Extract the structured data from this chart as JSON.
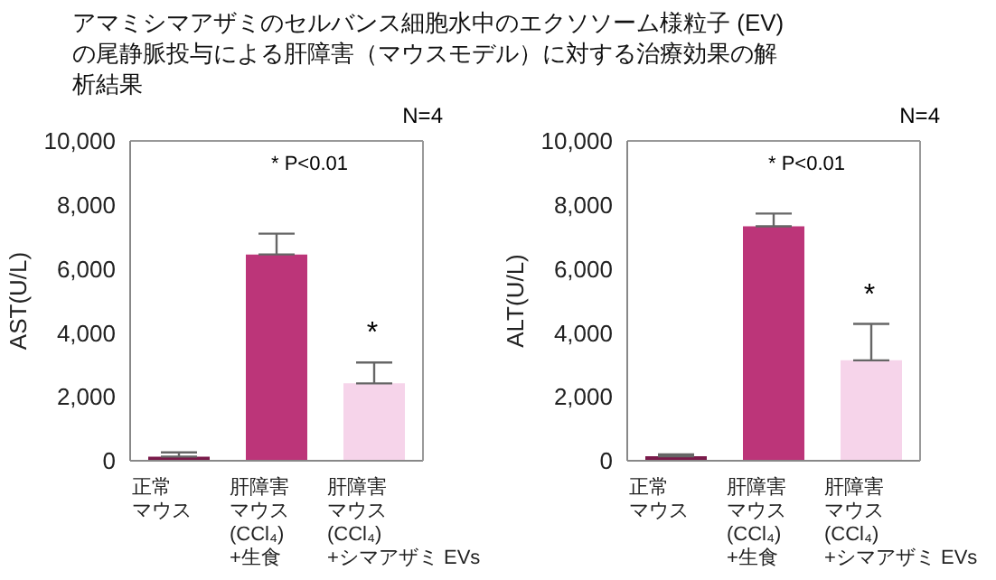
{
  "chart_data": [
    {
      "type": "bar",
      "title": "アマミシマアザミのセルバンス細胞水中のエクソソーム様粒子 (EV)の尾静脈投与による肝障害（マウスモデル）に対する治療効果の解析結果",
      "ylabel": "AST(U/L)",
      "categories": [
        "正常マウス",
        "肝障害マウス(CCl₄)+生食",
        "肝障害マウス(CCl₄)+シマアザミ EVs"
      ],
      "values": [
        130,
        6450,
        2420
      ],
      "errors": [
        [
          130,
          260
        ],
        [
          6450,
          7100
        ],
        [
          2420,
          3070
        ]
      ],
      "colors": [
        "#7a1a4a",
        "#bc3579",
        "#f6d4ea"
      ],
      "ylim": [
        0,
        10000
      ],
      "yticks": [
        {
          "value": 0,
          "label": "0"
        },
        {
          "value": 2000,
          "label": "2,000"
        },
        {
          "value": 4000,
          "label": "4,000"
        },
        {
          "value": 6000,
          "label": "6,000"
        },
        {
          "value": 8000,
          "label": "8,000"
        },
        {
          "value": 10000,
          "label": "10,000"
        }
      ],
      "annotations": [
        "N=4",
        "* P<0.01",
        "*"
      ]
    },
    {
      "type": "bar",
      "ylabel": "ALT(U/L)",
      "categories": [
        "正常マウス",
        "肝障害マウス(CCl₄)+生食",
        "肝障害マウス(CCl₄)+シマアザミ EVs"
      ],
      "values": [
        140,
        7330,
        3140
      ],
      "errors": [
        [
          140,
          200
        ],
        [
          7330,
          7730
        ],
        [
          3140,
          4280
        ]
      ],
      "colors": [
        "#7a1a4a",
        "#bc3579",
        "#f6d4ea"
      ],
      "ylim": [
        0,
        10000
      ],
      "yticks": [
        {
          "value": 0,
          "label": "0"
        },
        {
          "value": 2000,
          "label": "2,000"
        },
        {
          "value": 4000,
          "label": "4,000"
        },
        {
          "value": 6000,
          "label": "6,000"
        },
        {
          "value": 8000,
          "label": "8,000"
        },
        {
          "value": 10000,
          "label": "10,000"
        }
      ],
      "annotations": [
        "N=4",
        "* P<0.01",
        "*"
      ]
    }
  ]
}
